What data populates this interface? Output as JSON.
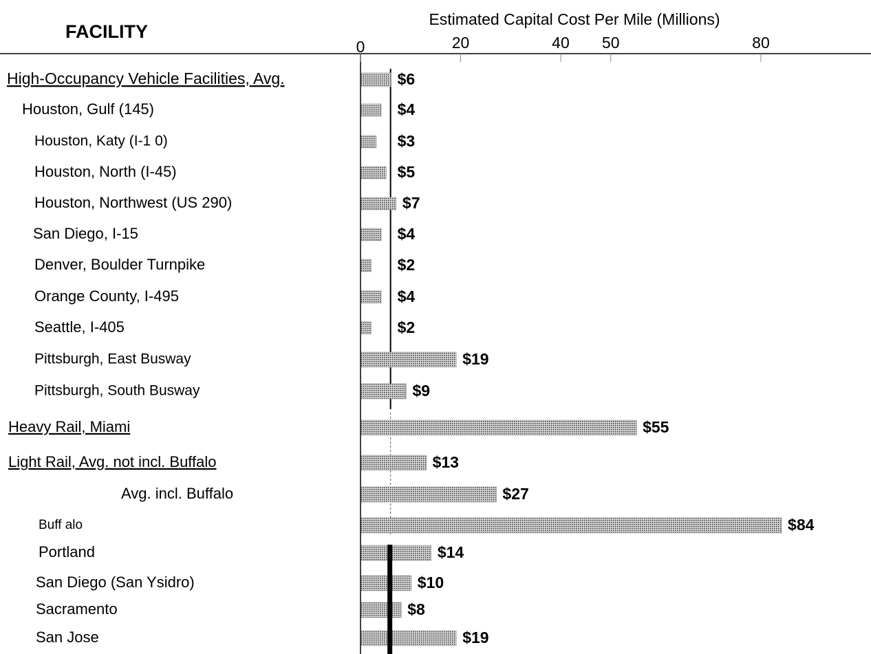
{
  "chart_data": {
    "type": "bar",
    "orientation": "horizontal",
    "title": "FACILITY",
    "xlabel": "Estimated Capital Cost Per Mile (Millions)",
    "categories": [
      "High-Occupancy Vehicle Facilities, Avg.",
      "Houston, Gulf (145)",
      "Houston, Katy (I-1 0)",
      "Houston, North (I-45)",
      "Houston, Northwest (US 290)",
      "San Diego, I-15",
      "Denver, Boulder Turnpike",
      "Orange County, I-495",
      "Seattle, I-405",
      "Pittsburgh, East Busway",
      "Pittsburgh, South Busway",
      "Heavy Rail, Miami",
      "Light Rail, Avg. not incl. Buffalo",
      "Avg. incl. Buffalo",
      "Buff alo",
      "Portland",
      "San Diego (San Ysidro)",
      "Sacramento",
      "San Jose"
    ],
    "values": [
      6,
      4,
      3,
      5,
      7,
      4,
      2,
      4,
      2,
      19,
      9,
      55,
      13,
      27,
      84,
      14,
      10,
      8,
      19
    ],
    "value_labels": [
      "$6",
      "$4",
      "$3",
      "$5",
      "$7",
      "$4",
      "$2",
      "$4",
      "$2",
      "$19",
      "$9",
      "$55",
      "$13",
      "$27",
      "$84",
      "$14",
      "$10",
      "$8",
      "$19"
    ],
    "color": "#8a8a8a",
    "xlim": [
      0,
      102
    ],
    "xticks": [
      0,
      20,
      40,
      50,
      80
    ]
  }
}
